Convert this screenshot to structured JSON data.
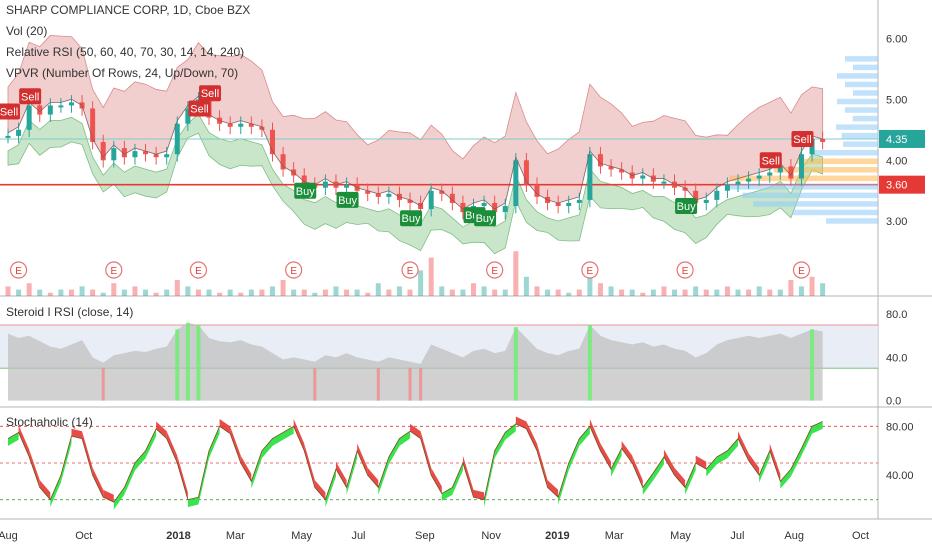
{
  "chart_data": [
    {
      "type": "candlestick",
      "title": "SHARP COMPLIANCE CORP, 1D, Cboe BZX",
      "indicators": [
        "Vol (20)",
        "Relative RSI (50, 60, 40, 70, 30, 14, 14, 240)",
        "VPVR (Number Of Rows, 24, Up/Down, 70)"
      ],
      "y_ticks": [
        "6.00",
        "5.00",
        "4.00",
        "3.00"
      ],
      "y_ticks_values": [
        6,
        5,
        4,
        3
      ],
      "ylim": [
        2.2,
        6.4
      ],
      "price_labels": [
        {
          "text": "4.35",
          "value": 4.35,
          "color": "#26a69a"
        },
        {
          "text": "3.60",
          "value": 3.6,
          "color": "#e53935"
        }
      ],
      "horizontal_lines": [
        {
          "value": 3.6,
          "color": "#e53935"
        },
        {
          "value": 4.35,
          "color": "#80cbc4"
        }
      ],
      "close_series": [
        4.4,
        4.5,
        4.9,
        4.75,
        4.9,
        4.9,
        4.95,
        4.85,
        4.3,
        4.0,
        4.2,
        4.05,
        4.15,
        4.1,
        4.05,
        4.1,
        4.6,
        4.85,
        5.0,
        4.7,
        4.6,
        4.55,
        4.6,
        4.55,
        4.5,
        4.1,
        3.85,
        3.75,
        3.6,
        3.55,
        3.65,
        3.55,
        3.6,
        3.5,
        3.45,
        3.4,
        3.45,
        3.35,
        3.3,
        3.2,
        3.5,
        3.45,
        3.3,
        3.15,
        3.25,
        3.3,
        3.15,
        3.25,
        4.0,
        3.6,
        3.4,
        3.3,
        3.25,
        3.3,
        3.35,
        4.1,
        3.9,
        3.85,
        3.8,
        3.7,
        3.75,
        3.65,
        3.65,
        3.55,
        3.5,
        3.3,
        3.35,
        3.5,
        3.6,
        3.65,
        3.7,
        3.75,
        3.8,
        3.9,
        3.7,
        4.1,
        4.35,
        4.3
      ],
      "signals": [
        {
          "label": "Sell",
          "color": "#d32f2f",
          "index": 0,
          "value": 4.8
        },
        {
          "label": "Sell",
          "color": "#d32f2f",
          "index": 2,
          "value": 5.05
        },
        {
          "label": "Sell",
          "color": "#d32f2f",
          "index": 18,
          "value": 4.85
        },
        {
          "label": "Sell",
          "color": "#d32f2f",
          "index": 19,
          "value": 5.1
        },
        {
          "label": "Buy",
          "color": "#1b8e3a",
          "index": 28,
          "value": 3.5
        },
        {
          "label": "Buy",
          "color": "#1b8e3a",
          "index": 32,
          "value": 3.35
        },
        {
          "label": "Buy",
          "color": "#1b8e3a",
          "index": 38,
          "value": 3.05
        },
        {
          "label": "Buy",
          "color": "#1b8e3a",
          "index": 44,
          "value": 3.1
        },
        {
          "label": "Buy",
          "color": "#1b8e3a",
          "index": 45,
          "value": 3.05
        },
        {
          "label": "Buy",
          "color": "#1b8e3a",
          "index": 64,
          "value": 3.25
        },
        {
          "label": "Sell",
          "color": "#d32f2f",
          "index": 72,
          "value": 4.0
        },
        {
          "label": "Sell",
          "color": "#d32f2f",
          "index": 75,
          "value": 4.35
        }
      ],
      "earnings_markers": [
        "E",
        "E",
        "E",
        "E",
        "E",
        "E",
        "E",
        "E",
        "E"
      ],
      "earnings_index": [
        1,
        10,
        18,
        27,
        38,
        46,
        55,
        64,
        75
      ],
      "volume_series": [
        3,
        2,
        4,
        2,
        1,
        2,
        2,
        3,
        2,
        1,
        4,
        2,
        3,
        2,
        1,
        2,
        5,
        3,
        2,
        2,
        1,
        2,
        1,
        2,
        2,
        3,
        5,
        2,
        2,
        1,
        2,
        3,
        2,
        2,
        1,
        4,
        2,
        3,
        2,
        8,
        12,
        3,
        2,
        2,
        4,
        3,
        2,
        2,
        14,
        6,
        3,
        2,
        2,
        1,
        2,
        9,
        4,
        3,
        2,
        2,
        1,
        2,
        3,
        2,
        2,
        3,
        2,
        2,
        3,
        2,
        2,
        3,
        2,
        2,
        5,
        3,
        6,
        4
      ]
    },
    {
      "type": "line",
      "title": "Steroid I RSI (close, 14)",
      "y_ticks": [
        "80.0",
        "40.0",
        "0.0"
      ],
      "y_ticks_values": [
        80,
        40,
        0
      ],
      "ylim": [
        -5,
        95
      ],
      "levels": [
        70,
        30
      ],
      "values": [
        62,
        58,
        60,
        55,
        50,
        48,
        52,
        56,
        40,
        35,
        42,
        44,
        46,
        45,
        48,
        50,
        66,
        72,
        70,
        58,
        55,
        54,
        56,
        52,
        50,
        44,
        38,
        40,
        38,
        36,
        42,
        40,
        44,
        40,
        38,
        36,
        40,
        38,
        36,
        34,
        52,
        48,
        44,
        40,
        46,
        48,
        44,
        46,
        68,
        58,
        48,
        44,
        42,
        46,
        48,
        70,
        60,
        56,
        54,
        52,
        54,
        50,
        52,
        48,
        46,
        40,
        44,
        52,
        56,
        58,
        60,
        58,
        60,
        62,
        58,
        62,
        66,
        64
      ]
    },
    {
      "type": "area",
      "title": "Stochaholic (14)",
      "y_ticks": [
        "80.00",
        "40.00"
      ],
      "y_ticks_values": [
        80,
        40
      ],
      "ylim": [
        5,
        95
      ],
      "levels": [
        80,
        50,
        20
      ],
      "values": [
        70,
        75,
        55,
        30,
        20,
        40,
        72,
        70,
        40,
        22,
        18,
        30,
        50,
        60,
        78,
        70,
        50,
        20,
        22,
        60,
        80,
        74,
        50,
        35,
        60,
        70,
        75,
        80,
        60,
        30,
        20,
        45,
        30,
        60,
        40,
        30,
        55,
        70,
        76,
        70,
        40,
        25,
        30,
        50,
        22,
        20,
        60,
        75,
        82,
        78,
        60,
        30,
        22,
        50,
        70,
        80,
        60,
        45,
        62,
        50,
        30,
        42,
        55,
        40,
        30,
        50,
        45,
        55,
        60,
        70,
        52,
        40,
        60,
        35,
        45,
        62,
        80,
        84
      ],
      "series": [
        {
          "color_up": "#22e03a"
        },
        {
          "color_down": "#e53935"
        }
      ]
    }
  ],
  "x_ticks": [
    {
      "text": "Aug",
      "index": 0,
      "bold": false
    },
    {
      "text": "Oct",
      "index": 8,
      "bold": false
    },
    {
      "text": "2018",
      "index": 18,
      "bold": true
    },
    {
      "text": "Mar",
      "index": 24,
      "bold": false
    },
    {
      "text": "May",
      "index": 31,
      "bold": false
    },
    {
      "text": "Jul",
      "index": 37,
      "bold": false
    },
    {
      "text": "Sep",
      "index": 44,
      "bold": false
    },
    {
      "text": "Nov",
      "index": 51,
      "bold": false
    },
    {
      "text": "2019",
      "index": 58,
      "bold": true
    },
    {
      "text": "Mar",
      "index": 64,
      "bold": false
    },
    {
      "text": "May",
      "index": 71,
      "bold": false
    },
    {
      "text": "Jul",
      "index": 77,
      "bold": false
    },
    {
      "text": "Aug",
      "index": 83,
      "bold": false
    },
    {
      "text": "Oct",
      "index": 90,
      "bold": false
    }
  ],
  "colors": {
    "up": "#26a69a",
    "down": "#ef5350",
    "band_upper": "#e8a8a8",
    "band_lower": "#a5d6a7",
    "vpvr": "#90caf9",
    "vpvr_hot": "#ffb74d",
    "rsi_fill": "#bdbdbd",
    "rsi_panel": "#e3e8f4"
  }
}
